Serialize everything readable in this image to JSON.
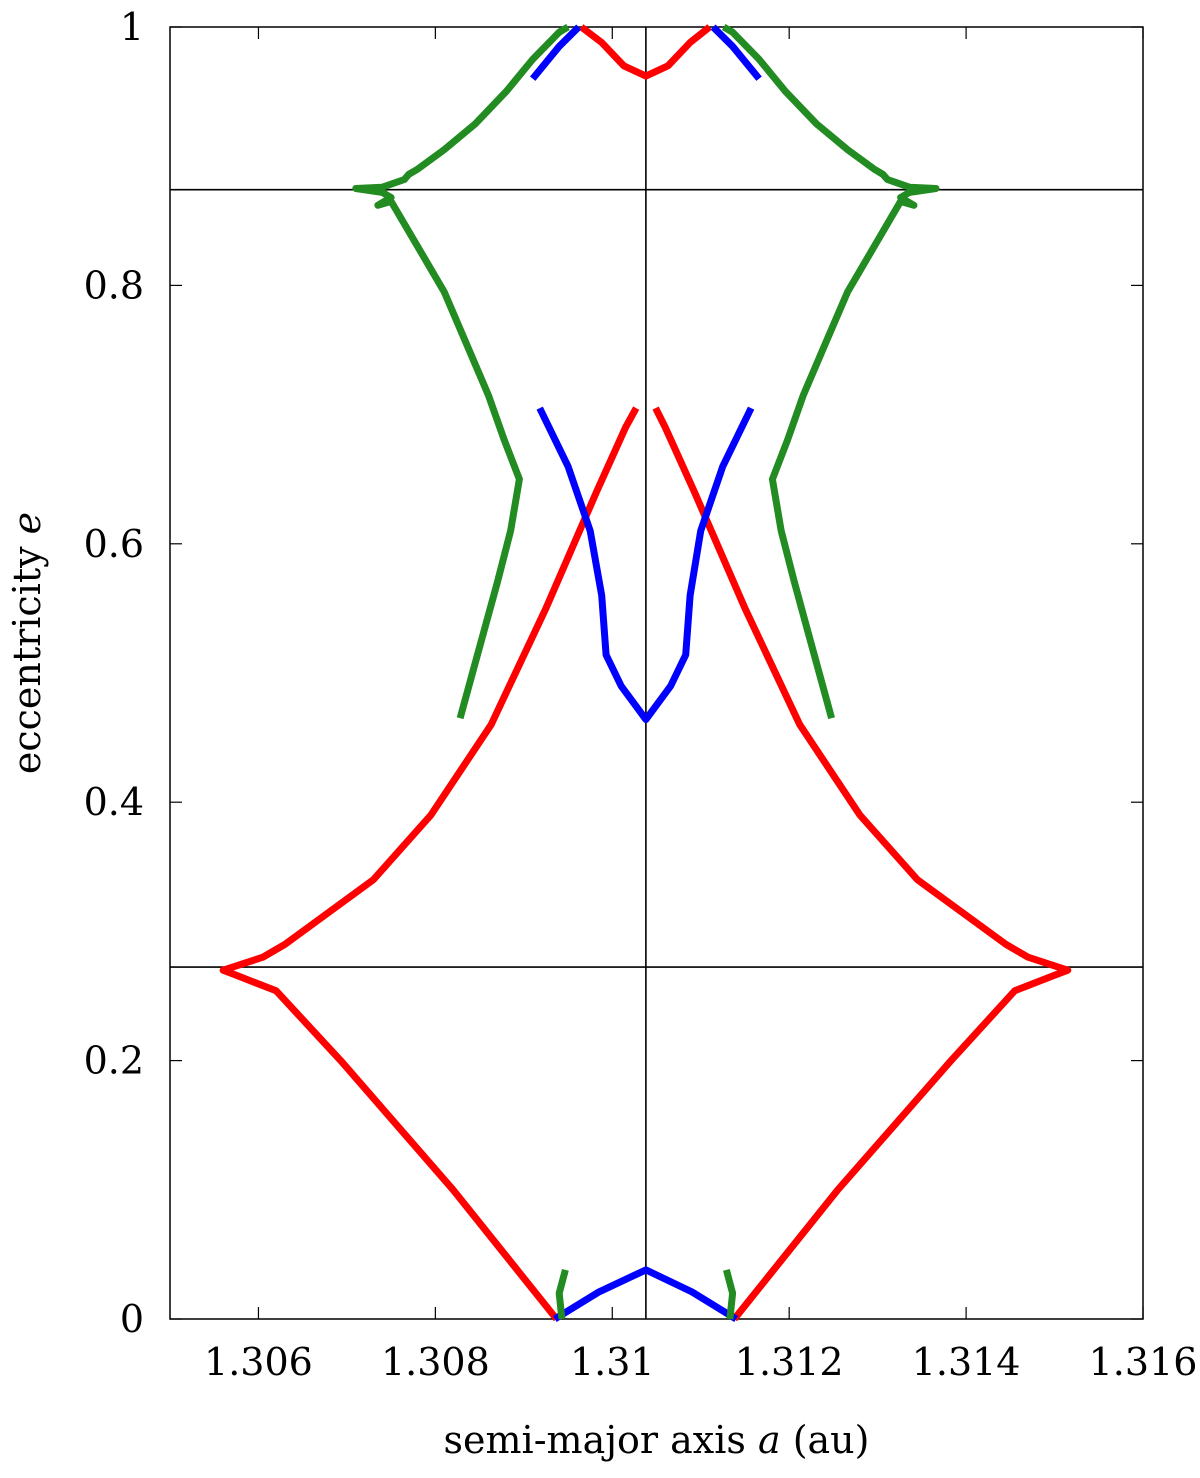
{
  "chart_data": {
    "type": "line",
    "xlabel": "semi-major axis a (au)",
    "xlabel_parts": [
      "semi-major axis ",
      "a",
      " (au)"
    ],
    "ylabel": "eccentricity e",
    "ylabel_parts": [
      "eccentricity ",
      "e"
    ],
    "xlim": [
      1.305,
      1.316
    ],
    "ylim": [
      0,
      1
    ],
    "xticks": [
      1.306,
      1.308,
      1.31,
      1.312,
      1.314,
      1.316
    ],
    "xtick_labels": [
      "1.306",
      "1.308",
      "1.31",
      "1.312",
      "1.314",
      "1.316"
    ],
    "yticks": [
      0,
      0.2,
      0.4,
      0.6,
      0.8,
      1
    ],
    "ytick_labels": [
      "0",
      "0.2",
      "0.4",
      "0.6",
      "0.8",
      "1"
    ],
    "grid": false,
    "reference_lines": {
      "vertical_x": [
        1.31038
      ],
      "horizontal_y": [
        0.2724,
        0.8741
      ]
    },
    "colors": {
      "red": "#ff0000",
      "blue": "#0000ff",
      "green": "#228b22",
      "reference": "#000000"
    },
    "series": [
      {
        "color": "red",
        "points": [
          [
            1.30937,
            0.0
          ],
          [
            1.3082,
            0.1
          ],
          [
            1.30693,
            0.2
          ],
          [
            1.3062,
            0.254
          ],
          [
            1.30575,
            0.266
          ],
          [
            1.3056,
            0.27
          ],
          [
            1.30605,
            0.28
          ],
          [
            1.3063,
            0.29
          ],
          [
            1.3073,
            0.34
          ],
          [
            1.30795,
            0.39
          ],
          [
            1.30863,
            0.46
          ],
          [
            1.30925,
            0.55
          ],
          [
            1.30982,
            0.64
          ],
          [
            1.31015,
            0.69
          ],
          [
            1.31027,
            0.705
          ]
        ]
      },
      {
        "color": "red",
        "points": [
          [
            1.31138,
            0.0
          ],
          [
            1.31255,
            0.1
          ],
          [
            1.31383,
            0.2
          ],
          [
            1.31455,
            0.254
          ],
          [
            1.315,
            0.266
          ],
          [
            1.31515,
            0.27
          ],
          [
            1.3147,
            0.28
          ],
          [
            1.31445,
            0.29
          ],
          [
            1.31345,
            0.34
          ],
          [
            1.3128,
            0.39
          ],
          [
            1.31212,
            0.46
          ],
          [
            1.3115,
            0.55
          ],
          [
            1.31093,
            0.64
          ],
          [
            1.3106,
            0.69
          ],
          [
            1.31049,
            0.705
          ]
        ]
      },
      {
        "color": "red",
        "points": [
          [
            1.30965,
            1.0
          ],
          [
            1.30988,
            0.988
          ],
          [
            1.31013,
            0.97
          ],
          [
            1.31038,
            0.962
          ],
          [
            1.31063,
            0.97
          ],
          [
            1.31088,
            0.988
          ],
          [
            1.3111,
            1.0
          ]
        ]
      },
      {
        "color": "blue",
        "points": [
          [
            1.30935,
            0.0
          ],
          [
            1.30985,
            0.021
          ],
          [
            1.31038,
            0.038
          ],
          [
            1.3109,
            0.021
          ],
          [
            1.3114,
            0.0
          ]
        ]
      },
      {
        "color": "blue",
        "points": [
          [
            1.30918,
            0.705
          ],
          [
            1.3095,
            0.66
          ],
          [
            1.30975,
            0.61
          ],
          [
            1.30988,
            0.56
          ],
          [
            1.30993,
            0.514
          ],
          [
            1.3101,
            0.49
          ],
          [
            1.31038,
            0.464
          ],
          [
            1.31066,
            0.49
          ],
          [
            1.31083,
            0.514
          ],
          [
            1.31088,
            0.56
          ],
          [
            1.311,
            0.61
          ],
          [
            1.31125,
            0.66
          ],
          [
            1.31157,
            0.705
          ]
        ]
      },
      {
        "color": "blue",
        "points": [
          [
            1.3091,
            0.96
          ],
          [
            1.3094,
            0.985
          ],
          [
            1.30962,
            1.0
          ]
        ]
      },
      {
        "color": "blue",
        "points": [
          [
            1.31166,
            0.96
          ],
          [
            1.31136,
            0.985
          ],
          [
            1.31114,
            1.0
          ]
        ]
      },
      {
        "color": "green",
        "points": [
          [
            1.30828,
            0.465
          ],
          [
            1.30848,
            0.515
          ],
          [
            1.3087,
            0.57
          ],
          [
            1.30885,
            0.61
          ],
          [
            1.30895,
            0.65
          ],
          [
            1.30878,
            0.68
          ],
          [
            1.3086,
            0.715
          ],
          [
            1.30835,
            0.755
          ],
          [
            1.3081,
            0.795
          ],
          [
            1.3078,
            0.83
          ],
          [
            1.3075,
            0.865
          ],
          [
            1.30735,
            0.862
          ],
          [
            1.3075,
            0.868
          ],
          [
            1.3074,
            0.872
          ],
          [
            1.3071,
            0.875
          ],
          [
            1.3074,
            0.876
          ],
          [
            1.30765,
            0.882
          ],
          [
            1.3077,
            0.886
          ],
          [
            1.3078,
            0.89
          ],
          [
            1.3081,
            0.905
          ],
          [
            1.30845,
            0.925
          ],
          [
            1.3088,
            0.95
          ],
          [
            1.3091,
            0.975
          ],
          [
            1.3094,
            0.996
          ],
          [
            1.3095,
            1.0
          ]
        ]
      },
      {
        "color": "green",
        "points": [
          [
            1.31248,
            0.465
          ],
          [
            1.31228,
            0.515
          ],
          [
            1.31206,
            0.57
          ],
          [
            1.31191,
            0.61
          ],
          [
            1.31181,
            0.65
          ],
          [
            1.31198,
            0.68
          ],
          [
            1.31216,
            0.715
          ],
          [
            1.31241,
            0.755
          ],
          [
            1.31266,
            0.795
          ],
          [
            1.31296,
            0.83
          ],
          [
            1.31326,
            0.865
          ],
          [
            1.31341,
            0.862
          ],
          [
            1.31326,
            0.868
          ],
          [
            1.31336,
            0.872
          ],
          [
            1.31366,
            0.875
          ],
          [
            1.31336,
            0.876
          ],
          [
            1.31311,
            0.882
          ],
          [
            1.31306,
            0.886
          ],
          [
            1.31296,
            0.89
          ],
          [
            1.31266,
            0.905
          ],
          [
            1.31231,
            0.925
          ],
          [
            1.31196,
            0.95
          ],
          [
            1.31166,
            0.975
          ],
          [
            1.31136,
            0.996
          ],
          [
            1.31126,
            1.0
          ]
        ]
      },
      {
        "color": "green",
        "points": [
          [
            1.30943,
            0.0
          ],
          [
            1.3094,
            0.02
          ],
          [
            1.30947,
            0.038
          ]
        ]
      },
      {
        "color": "green",
        "points": [
          [
            1.31133,
            0.0
          ],
          [
            1.31136,
            0.02
          ],
          [
            1.31129,
            0.038
          ]
        ]
      }
    ]
  }
}
